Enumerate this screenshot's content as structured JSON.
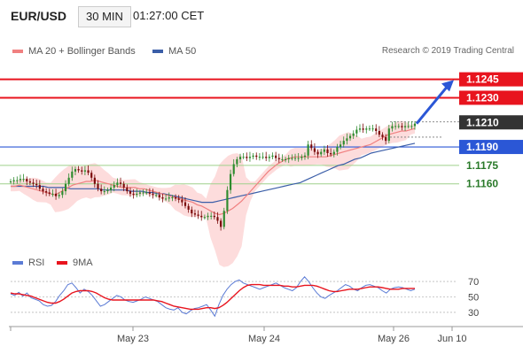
{
  "header": {
    "pair": "EUR/USD",
    "timeframe": "30 MIN",
    "time": "01:27:00 CET",
    "credit": "Research © 2019 Trading Central"
  },
  "colors": {
    "ma20": "#f08080",
    "band_fill": "#fdd6d6",
    "ma50": "#3b5ea8",
    "resistance": "#e8141e",
    "support": "#9fd18c",
    "pivot": "#2b57d6",
    "current": "#333333",
    "up": "#2e8b2e",
    "down": "#7a0a0a",
    "rsi": "#5b7bd5",
    "rsi_ma": "#e8141e"
  },
  "chart_data": [
    {
      "type": "candlestick",
      "name": "price",
      "ylim": [
        1.1108,
        1.1262
      ],
      "legend": [
        {
          "label": "MA 20 + Bollinger Bands",
          "color": "#f08080"
        },
        {
          "label": "MA 50",
          "color": "#3b5ea8"
        }
      ],
      "x_ticks": [
        "May 23",
        "May 24",
        "May 26",
        "Jun 10"
      ],
      "levels": [
        {
          "value": 1.1245,
          "label": "1.1245",
          "kind": "resistance"
        },
        {
          "value": 1.123,
          "label": "1.1230",
          "kind": "resistance"
        },
        {
          "value": 1.121,
          "label": "1.1210",
          "kind": "current"
        },
        {
          "value": 1.119,
          "label": "1.1190",
          "kind": "pivot"
        },
        {
          "value": 1.1175,
          "label": "1.1175",
          "kind": "support"
        },
        {
          "value": 1.116,
          "label": "1.1160",
          "kind": "support"
        }
      ],
      "forecast": {
        "from": 1.1209,
        "to": 1.1243
      },
      "closes": [
        1.1162,
        1.1163,
        1.1163,
        1.1164,
        1.1164,
        1.1162,
        1.1161,
        1.116,
        1.1159,
        1.1156,
        1.1154,
        1.1153,
        1.1152,
        1.1152,
        1.115,
        1.1151,
        1.1154,
        1.116,
        1.1165,
        1.117,
        1.1172,
        1.1171,
        1.117,
        1.1171,
        1.1169,
        1.1165,
        1.116,
        1.1156,
        1.1154,
        1.1154,
        1.1155,
        1.1157,
        1.1159,
        1.1161,
        1.116,
        1.1157,
        1.1154,
        1.1152,
        1.1151,
        1.1152,
        1.1153,
        1.1153,
        1.1153,
        1.1152,
        1.1151,
        1.1151,
        1.1149,
        1.1148,
        1.1148,
        1.1149,
        1.1149,
        1.1148,
        1.1147,
        1.1145,
        1.1142,
        1.1139,
        1.1136,
        1.1135,
        1.1134,
        1.1133,
        1.1133,
        1.1134,
        1.1134,
        1.1133,
        1.113,
        1.1125,
        1.1138,
        1.1155,
        1.1168,
        1.1176,
        1.118,
        1.1182,
        1.1182,
        1.1181,
        1.1182,
        1.1183,
        1.1182,
        1.1182,
        1.1182,
        1.1181,
        1.1182,
        1.1183,
        1.1181,
        1.118,
        1.118,
        1.118,
        1.1181,
        1.1181,
        1.1181,
        1.1181,
        1.1182,
        1.1183,
        1.1192,
        1.1189,
        1.1186,
        1.1184,
        1.1186,
        1.1188,
        1.1185,
        1.1184,
        1.1186,
        1.119,
        1.1192,
        1.1195,
        1.1197,
        1.1199,
        1.1201,
        1.1204,
        1.1205,
        1.1204,
        1.1205,
        1.1205,
        1.1205,
        1.1203,
        1.12,
        1.1198,
        1.1195,
        1.1205,
        1.1207,
        1.1207,
        1.1207,
        1.1206,
        1.1207,
        1.1207,
        1.1207,
        1.1209
      ],
      "ma20": [
        1.1158,
        1.1158,
        1.1159,
        1.1158,
        1.1157,
        1.1156,
        1.1155,
        1.1154,
        1.1153,
        1.1152,
        1.1151,
        1.1153,
        1.1155,
        1.1157,
        1.1159,
        1.116,
        1.1161,
        1.1162,
        1.1162,
        1.1163,
        1.1162,
        1.1161,
        1.116,
        1.1159,
        1.1158,
        1.1157,
        1.1157,
        1.1157,
        1.1157,
        1.1156,
        1.1156,
        1.1155,
        1.1154,
        1.1153,
        1.1152,
        1.1151,
        1.115,
        1.1149,
        1.1148,
        1.1147,
        1.1146,
        1.1145,
        1.1143,
        1.1142,
        1.114,
        1.1138,
        1.1136,
        1.1135,
        1.1136,
        1.1138,
        1.114,
        1.1143,
        1.1146,
        1.115,
        1.1154,
        1.1158,
        1.1162,
        1.1166,
        1.117,
        1.1173,
        1.1176,
        1.1178,
        1.118,
        1.1181,
        1.1182,
        1.1182,
        1.1182,
        1.1182,
        1.1182,
        1.1182,
        1.1182,
        1.1182,
        1.1183,
        1.1184,
        1.1185,
        1.1186,
        1.1187,
        1.1188,
        1.1189,
        1.119,
        1.1191,
        1.1192,
        1.1194,
        1.1196,
        1.1198,
        1.12,
        1.1201,
        1.1202,
        1.1203,
        1.1203,
        1.1204,
        1.1205
      ],
      "ma50": [
        1.1158,
        1.1158,
        1.1158,
        1.1158,
        1.1158,
        1.1158,
        1.1158,
        1.1157,
        1.1157,
        1.1157,
        1.1157,
        1.1156,
        1.1156,
        1.1156,
        1.1156,
        1.1156,
        1.1156,
        1.1155,
        1.1155,
        1.1155,
        1.1155,
        1.1155,
        1.1154,
        1.1154,
        1.1154,
        1.1153,
        1.1153,
        1.1152,
        1.1152,
        1.1151,
        1.115,
        1.1149,
        1.1148,
        1.1147,
        1.1146,
        1.1145,
        1.1145,
        1.1145,
        1.1146,
        1.1147,
        1.1148,
        1.1149,
        1.115,
        1.1151,
        1.1152,
        1.1153,
        1.1154,
        1.1155,
        1.1156,
        1.1157,
        1.1158,
        1.1159,
        1.116,
        1.1161,
        1.1163,
        1.1165,
        1.1167,
        1.1169,
        1.1171,
        1.1173,
        1.1175,
        1.1176,
        1.1178,
        1.118,
        1.1181,
        1.1183,
        1.1185,
        1.1186,
        1.1187,
        1.1188,
        1.1189,
        1.119,
        1.1191,
        1.1192,
        1.1193
      ]
    },
    {
      "type": "line",
      "name": "rsi",
      "ylim": [
        15,
        85
      ],
      "yticks": [
        70,
        50,
        30
      ],
      "legend": [
        {
          "label": "RSI",
          "color": "#5b7bd5"
        },
        {
          "label": "9MA",
          "color": "#e8141e"
        }
      ],
      "series": [
        {
          "name": "RSI",
          "values": [
            54,
            52,
            56,
            51,
            55,
            49,
            47,
            45,
            40,
            38,
            39,
            44,
            52,
            58,
            66,
            68,
            62,
            55,
            60,
            57,
            52,
            45,
            38,
            40,
            44,
            48,
            52,
            50,
            46,
            44,
            43,
            45,
            47,
            50,
            48,
            46,
            44,
            40,
            36,
            34,
            33,
            36,
            30,
            28,
            32,
            35,
            36,
            38,
            40,
            33,
            25,
            40,
            52,
            60,
            66,
            70,
            72,
            68,
            66,
            64,
            62,
            60,
            62,
            64,
            66,
            68,
            65,
            62,
            60,
            58,
            62,
            70,
            76,
            70,
            62,
            55,
            50,
            48,
            52,
            55,
            58,
            62,
            66,
            64,
            60,
            58,
            62,
            65,
            66,
            64,
            62,
            58,
            55,
            60,
            62,
            63,
            62,
            60,
            58,
            60
          ]
        },
        {
          "name": "9MA",
          "values": [
            55,
            54,
            54,
            53,
            52,
            51,
            49,
            47,
            45,
            43,
            42,
            42,
            44,
            47,
            51,
            55,
            57,
            58,
            58,
            58,
            57,
            55,
            52,
            49,
            47,
            46,
            46,
            46,
            46,
            46,
            46,
            46,
            46,
            46,
            46,
            46,
            45,
            44,
            42,
            40,
            38,
            37,
            36,
            35,
            34,
            34,
            34,
            35,
            36,
            36,
            35,
            36,
            39,
            43,
            48,
            53,
            58,
            62,
            65,
            66,
            66,
            66,
            65,
            65,
            65,
            65,
            65,
            64,
            64,
            63,
            63,
            64,
            65,
            65,
            65,
            64,
            62,
            60,
            58,
            57,
            57,
            58,
            59,
            60,
            60,
            60,
            61,
            62,
            63,
            63,
            63,
            62,
            61,
            60,
            60,
            60,
            61,
            61,
            61,
            61
          ]
        }
      ]
    }
  ]
}
